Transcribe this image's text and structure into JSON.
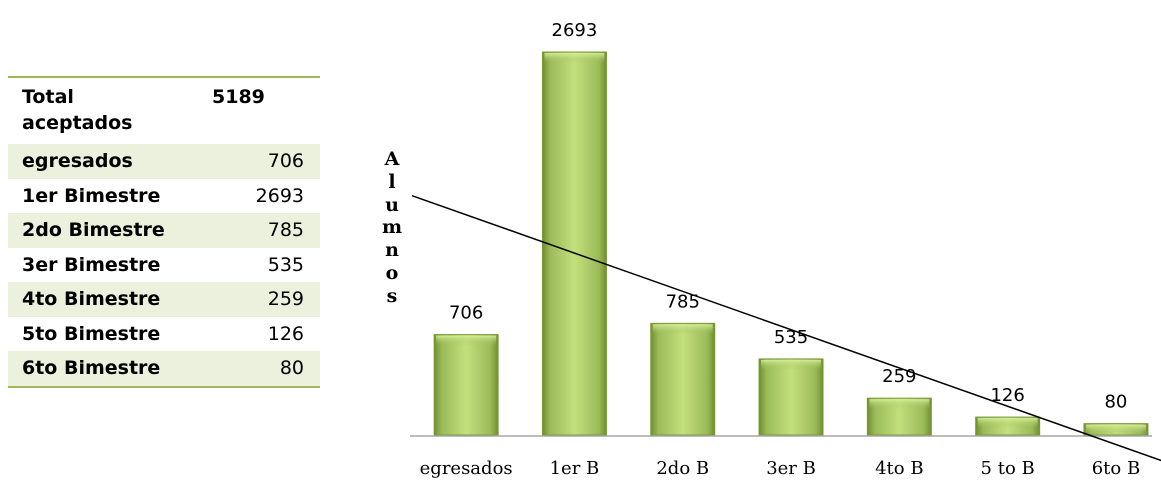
{
  "table": {
    "header": {
      "label_line1": "Total",
      "label_line2": "aceptados",
      "value": "5189"
    },
    "rows": [
      {
        "label": "egresados",
        "value": "706"
      },
      {
        "label": "1er Bimestre",
        "value": "2693"
      },
      {
        "label": "2do Bimestre",
        "value": "785"
      },
      {
        "label": "3er Bimestre",
        "value": "535"
      },
      {
        "label": "4to Bimestre",
        "value": "259"
      },
      {
        "label": "5to Bimestre",
        "value": "126"
      },
      {
        "label": "6to Bimestre",
        "value": "80"
      }
    ]
  },
  "chart_data": {
    "type": "bar",
    "categories": [
      "egresados",
      "1er B",
      "2do B",
      "3er B",
      "4to B",
      "5 to B",
      "6to B"
    ],
    "values": [
      706,
      2693,
      785,
      535,
      259,
      126,
      80
    ],
    "ylabel": "Alumnos",
    "ylim": [
      0,
      2693
    ],
    "trendline": "linear",
    "legend": "none",
    "grid": false,
    "colors": {
      "bar": "#9bbb59",
      "bar_light": "#c3e07c",
      "bar_dark": "#6f8f2e",
      "trendline": "#000000"
    }
  }
}
